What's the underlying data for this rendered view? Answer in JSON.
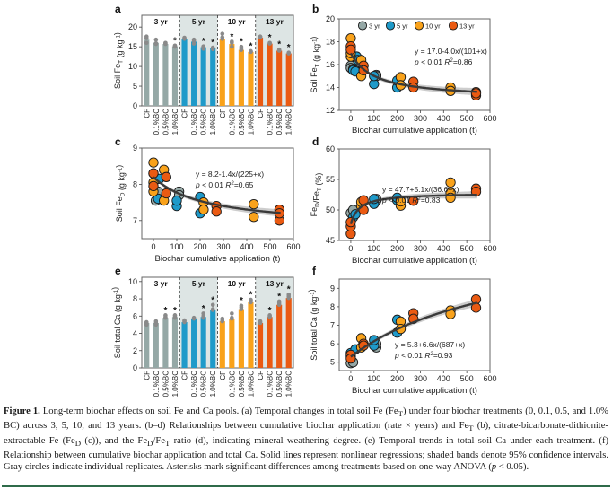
{
  "figure": {
    "caption_label": "Figure 1.",
    "caption_parts": [
      "Long-term biochar effects on soil Fe and Ca pools. (a) Temporal changes in total soil Fe (Fe",
      "T",
      ") under four biochar treatments (0, 0.1, 0.5, and 1.0% BC) across 3, 5, 10, and 13 years. (b–d) Relationships between cumulative biochar application (rate × years) and Fe",
      "T",
      " (b), citrate-bicarbonate-dithionite-extractable Fe (Fe",
      "D",
      " (c)), and the Fe",
      "D",
      "/Fe",
      "T",
      " ratio (d), indicating mineral weathering degree. (e) Temporal trends in total soil Ca under each treatment. (f) Relationship between cumulative biochar application and total Ca. Solid lines represent nonlinear regressions; shaded bands denote 95% confidence intervals. Gray circles indicate individual replicates. Asterisks mark significant differences among treatments based on one-way ANOVA (",
      "p",
      " < 0.05)."
    ]
  },
  "colors": {
    "3 yr": "#95a8a6",
    "5 yr": "#1f9ac9",
    "10 yr": "#f9a21b",
    "13 yr": "#ea5a12",
    "panel_shade": "#dde5e4",
    "fit_line": "#3a3a3a",
    "ci_band": "#b8b8b8",
    "replicate": "#8a8a8a",
    "rule": "#2f6b4a"
  },
  "chart_data": [
    {
      "panel": "a",
      "type": "bar",
      "ylabel": "Soil Fe_T (g kg-1)",
      "ylim": [
        0,
        23
      ],
      "yticks": [
        0,
        5,
        10,
        15,
        20
      ],
      "groups": [
        "3 yr",
        "5 yr",
        "10 yr",
        "13 yr"
      ],
      "categories": [
        "CF",
        "0.1%BC",
        "0.5%BC",
        "1.0%BC"
      ],
      "series": [
        {
          "name": "3 yr",
          "values": [
            16.8,
            16.0,
            15.7,
            15.1
          ],
          "significant": [
            false,
            false,
            false,
            true
          ],
          "replicates": [
            [
              17.6,
              16.0,
              17.2
            ],
            [
              16.8,
              15.7,
              15.9
            ],
            [
              16.0,
              15.7,
              15.9
            ],
            [
              15.2,
              15.0,
              15.3
            ]
          ]
        },
        {
          "name": "5 yr",
          "values": [
            16.9,
            16.3,
            14.9,
            14.6
          ],
          "significant": [
            false,
            false,
            true,
            true
          ],
          "replicates": [
            [
              17.3,
              17.0,
              17.1
            ],
            [
              16.8,
              15.8,
              16.5
            ],
            [
              15.1,
              14.5,
              15.0
            ],
            [
              14.8,
              14.4,
              14.6
            ]
          ]
        },
        {
          "name": "10 yr",
          "values": [
            16.9,
            15.7,
            14.2,
            13.7
          ],
          "significant": [
            false,
            true,
            true,
            true
          ],
          "replicates": [
            [
              18.3,
              17.0,
              17.4
            ],
            [
              16.3,
              15.0,
              16.0
            ],
            [
              15.0,
              14.2,
              14.5
            ],
            [
              13.9,
              13.7,
              13.8
            ]
          ]
        },
        {
          "name": "13 yr",
          "values": [
            17.3,
            15.8,
            14.0,
            13.3
          ],
          "significant": [
            false,
            true,
            true,
            true
          ],
          "replicates": [
            [
              17.6,
              17.4,
              17.5
            ],
            [
              16.0,
              15.8,
              15.9
            ],
            [
              14.3,
              14.0,
              14.1
            ],
            [
              13.5,
              13.3,
              13.4
            ]
          ]
        }
      ],
      "group_labels": [
        "3 yr",
        "5 yr",
        "10 yr",
        "13 yr"
      ]
    },
    {
      "panel": "b",
      "type": "scatter",
      "xlabel": "Biochar cumulative application (t)",
      "ylabel": "Soil Fe_T (g kg-1)",
      "xlim": [
        -50,
        600
      ],
      "ylim": [
        12,
        20
      ],
      "xticks": [
        0,
        100,
        200,
        300,
        400,
        500,
        600
      ],
      "yticks": [
        12,
        14,
        16,
        18,
        20
      ],
      "legend": [
        "3 yr",
        "5 yr",
        "10 yr",
        "13 yr"
      ],
      "legend_position": "top",
      "equation": "y = 17.0-4.0x/(101+x)",
      "stats": "p < 0.01 R2=0.86",
      "fit": {
        "a": 17.0,
        "b": -4.0,
        "c": 101
      },
      "points": [
        {
          "s": "3 yr",
          "x": 0,
          "y": 15.9
        },
        {
          "s": "3 yr",
          "x": 0,
          "y": 15.7
        },
        {
          "s": "3 yr",
          "x": 10,
          "y": 15.6
        },
        {
          "s": "3 yr",
          "x": 20,
          "y": 15.5
        },
        {
          "s": "3 yr",
          "x": 110,
          "y": 15.1
        },
        {
          "s": "3 yr",
          "x": 110,
          "y": 15.0
        },
        {
          "s": "5 yr",
          "x": 10,
          "y": 15.5
        },
        {
          "s": "5 yr",
          "x": 20,
          "y": 15.4
        },
        {
          "s": "5 yr",
          "x": 25,
          "y": 16.7
        },
        {
          "s": "5 yr",
          "x": 30,
          "y": 16.4
        },
        {
          "s": "5 yr",
          "x": 100,
          "y": 14.3
        },
        {
          "s": "5 yr",
          "x": 100,
          "y": 15.0
        },
        {
          "s": "5 yr",
          "x": 200,
          "y": 14.0
        },
        {
          "s": "5 yr",
          "x": 200,
          "y": 14.6
        },
        {
          "s": "10 yr",
          "x": 0,
          "y": 18.3
        },
        {
          "s": "10 yr",
          "x": 0,
          "y": 16.7
        },
        {
          "s": "10 yr",
          "x": 0,
          "y": 17.0
        },
        {
          "s": "10 yr",
          "x": 45,
          "y": 16.4
        },
        {
          "s": "10 yr",
          "x": 45,
          "y": 15.0
        },
        {
          "s": "10 yr",
          "x": 215,
          "y": 14.9
        },
        {
          "s": "10 yr",
          "x": 215,
          "y": 14.2
        },
        {
          "s": "10 yr",
          "x": 430,
          "y": 14.0
        },
        {
          "s": "10 yr",
          "x": 430,
          "y": 13.7
        },
        {
          "s": "13 yr",
          "x": 0,
          "y": 17.6
        },
        {
          "s": "13 yr",
          "x": 0,
          "y": 17.3
        },
        {
          "s": "13 yr",
          "x": 55,
          "y": 15.9
        },
        {
          "s": "13 yr",
          "x": 55,
          "y": 15.5
        },
        {
          "s": "13 yr",
          "x": 270,
          "y": 14.5
        },
        {
          "s": "13 yr",
          "x": 270,
          "y": 14.0
        },
        {
          "s": "13 yr",
          "x": 540,
          "y": 13.6
        },
        {
          "s": "13 yr",
          "x": 540,
          "y": 13.3
        },
        {
          "s": "13 yr",
          "x": 540,
          "y": 13.5
        }
      ]
    },
    {
      "panel": "c",
      "type": "scatter",
      "xlabel": "Biochar cumulative application (t)",
      "ylabel": "Soil Fe_D (g kg-1)",
      "xlim": [
        -50,
        600
      ],
      "ylim": [
        6.5,
        9
      ],
      "xticks": [
        0,
        100,
        200,
        300,
        400,
        500,
        600
      ],
      "yticks": [
        7,
        8,
        9
      ],
      "equation": "y = 8.2-1.4x/(225+x)",
      "stats": "p < 0.01  R2=0.65",
      "fit": {
        "a": 8.2,
        "b": -1.4,
        "c": 225
      },
      "points": [
        {
          "s": "3 yr",
          "x": 0,
          "y": 8.3
        },
        {
          "s": "3 yr",
          "x": 10,
          "y": 7.55
        },
        {
          "s": "3 yr",
          "x": 20,
          "y": 7.8
        },
        {
          "s": "3 yr",
          "x": 110,
          "y": 7.8
        },
        {
          "s": "3 yr",
          "x": 110,
          "y": 7.7
        },
        {
          "s": "5 yr",
          "x": 20,
          "y": 7.6
        },
        {
          "s": "5 yr",
          "x": 25,
          "y": 8.15
        },
        {
          "s": "5 yr",
          "x": 100,
          "y": 7.4
        },
        {
          "s": "5 yr",
          "x": 100,
          "y": 7.55
        },
        {
          "s": "5 yr",
          "x": 200,
          "y": 7.2
        },
        {
          "s": "5 yr",
          "x": 200,
          "y": 7.65
        },
        {
          "s": "10 yr",
          "x": 0,
          "y": 8.6
        },
        {
          "s": "10 yr",
          "x": 0,
          "y": 7.8
        },
        {
          "s": "10 yr",
          "x": 0,
          "y": 8.05
        },
        {
          "s": "10 yr",
          "x": 45,
          "y": 8.4
        },
        {
          "s": "10 yr",
          "x": 45,
          "y": 7.55
        },
        {
          "s": "10 yr",
          "x": 215,
          "y": 7.5
        },
        {
          "s": "10 yr",
          "x": 215,
          "y": 7.3
        },
        {
          "s": "10 yr",
          "x": 430,
          "y": 7.45
        },
        {
          "s": "10 yr",
          "x": 430,
          "y": 7.1
        },
        {
          "s": "13 yr",
          "x": 0,
          "y": 8.3
        },
        {
          "s": "13 yr",
          "x": 0,
          "y": 7.95
        },
        {
          "s": "13 yr",
          "x": 55,
          "y": 8.2
        },
        {
          "s": "13 yr",
          "x": 55,
          "y": 7.75
        },
        {
          "s": "13 yr",
          "x": 270,
          "y": 7.4
        },
        {
          "s": "13 yr",
          "x": 270,
          "y": 7.25
        },
        {
          "s": "13 yr",
          "x": 540,
          "y": 7.3
        },
        {
          "s": "13 yr",
          "x": 540,
          "y": 7.0
        },
        {
          "s": "13 yr",
          "x": 540,
          "y": 7.2
        }
      ]
    },
    {
      "panel": "d",
      "type": "scatter",
      "xlabel": "Biochar cumulative application (t)",
      "ylabel": "Fe_D/Fe_T (%)",
      "xlim": [
        -50,
        600
      ],
      "ylim": [
        45,
        60
      ],
      "xticks": [
        0,
        100,
        200,
        300,
        400,
        500,
        600
      ],
      "yticks": [
        45,
        50,
        55,
        60
      ],
      "equation": "y = 47.7+5.1x/(36.6+x)",
      "stats": "p < 0.01  R2=0.83",
      "fit": {
        "a": 47.7,
        "b": 5.1,
        "c": 36.6
      },
      "points": [
        {
          "s": "3 yr",
          "x": 0,
          "y": 49.5
        },
        {
          "s": "3 yr",
          "x": 10,
          "y": 50.0
        },
        {
          "s": "3 yr",
          "x": 110,
          "y": 51.5
        },
        {
          "s": "3 yr",
          "x": 110,
          "y": 51.8
        },
        {
          "s": "5 yr",
          "x": 10,
          "y": 48.8
        },
        {
          "s": "5 yr",
          "x": 20,
          "y": 49.3
        },
        {
          "s": "5 yr",
          "x": 100,
          "y": 51.0
        },
        {
          "s": "5 yr",
          "x": 100,
          "y": 51.8
        },
        {
          "s": "5 yr",
          "x": 200,
          "y": 51.6
        },
        {
          "s": "5 yr",
          "x": 200,
          "y": 52.0
        },
        {
          "s": "10 yr",
          "x": 45,
          "y": 50.6
        },
        {
          "s": "10 yr",
          "x": 45,
          "y": 51.3
        },
        {
          "s": "10 yr",
          "x": 215,
          "y": 50.7
        },
        {
          "s": "10 yr",
          "x": 215,
          "y": 51.4
        },
        {
          "s": "10 yr",
          "x": 430,
          "y": 54.5
        },
        {
          "s": "10 yr",
          "x": 430,
          "y": 52.8
        },
        {
          "s": "10 yr",
          "x": 430,
          "y": 52.0
        },
        {
          "s": "13 yr",
          "x": 0,
          "y": 46.1
        },
        {
          "s": "13 yr",
          "x": 0,
          "y": 47.3
        },
        {
          "s": "13 yr",
          "x": 0,
          "y": 48.0
        },
        {
          "s": "13 yr",
          "x": 55,
          "y": 50.0
        },
        {
          "s": "13 yr",
          "x": 55,
          "y": 51.6
        },
        {
          "s": "13 yr",
          "x": 270,
          "y": 51.5
        },
        {
          "s": "13 yr",
          "x": 540,
          "y": 53.5
        },
        {
          "s": "13 yr",
          "x": 540,
          "y": 53.0
        }
      ]
    },
    {
      "panel": "e",
      "type": "bar",
      "ylabel": "Soil total Ca (g kg-1)",
      "ylim": [
        0,
        10.5
      ],
      "yticks": [
        0,
        2,
        4,
        6,
        8,
        10
      ],
      "groups": [
        "3 yr",
        "5 yr",
        "10 yr",
        "13 yr"
      ],
      "categories": [
        "CF",
        "0.1%BC",
        "0.5%BC",
        "1.0%BC"
      ],
      "series": [
        {
          "name": "3 yr",
          "values": [
            5.2,
            5.2,
            5.8,
            5.9
          ],
          "significant": [
            false,
            false,
            true,
            true
          ],
          "replicates": [
            [
              5.3,
              5.0,
              5.2
            ],
            [
              5.4,
              5.0,
              5.2
            ],
            [
              6.1,
              5.8,
              5.9
            ],
            [
              6.1,
              5.8,
              6.0
            ]
          ]
        },
        {
          "name": "5 yr",
          "values": [
            5.3,
            5.7,
            5.9,
            6.7
          ],
          "significant": [
            false,
            false,
            true,
            true
          ],
          "replicates": [
            [
              5.5,
              5.3,
              5.4
            ],
            [
              5.8,
              5.7,
              5.75
            ],
            [
              6.3,
              5.8,
              6.0
            ],
            [
              7.3,
              6.7,
              6.8
            ]
          ]
        },
        {
          "name": "10 yr",
          "values": [
            5.4,
            5.7,
            6.8,
            7.6
          ],
          "significant": [
            false,
            false,
            true,
            true
          ],
          "replicates": [
            [
              5.7,
              5.4,
              5.5
            ],
            [
              6.3,
              5.7,
              5.8
            ],
            [
              7.2,
              6.8,
              7.0
            ],
            [
              7.9,
              7.6,
              7.8
            ]
          ]
        },
        {
          "name": "13 yr",
          "values": [
            5.2,
            5.9,
            7.3,
            8.1
          ],
          "significant": [
            false,
            true,
            true,
            true
          ],
          "replicates": [
            [
              5.4,
              5.2,
              5.3
            ],
            [
              6.1,
              5.9,
              6.0
            ],
            [
              7.7,
              7.3,
              7.5
            ],
            [
              8.5,
              8.1,
              8.3
            ]
          ]
        }
      ],
      "group_labels": [
        "3 yr",
        "5 yr",
        "10 yr",
        "13 yr"
      ]
    },
    {
      "panel": "f",
      "type": "scatter",
      "xlabel": "Biochar cumulative application (t)",
      "ylabel": "Soil total Ca (g kg-1)",
      "xlim": [
        -50,
        600
      ],
      "ylim": [
        4.55,
        9.5
      ],
      "xticks": [
        0,
        100,
        200,
        300,
        400,
        500,
        600
      ],
      "yticks": [
        5,
        6,
        7,
        8,
        9
      ],
      "equation": "y = 5.3+6.6x/(687+x)",
      "stats": "p < 0.01  R2=0.93",
      "fit": {
        "a": 5.3,
        "b": 6.6,
        "c": 687
      },
      "points": [
        {
          "s": "3 yr",
          "x": 0,
          "y": 4.95
        },
        {
          "s": "3 yr",
          "x": 10,
          "y": 5.0
        },
        {
          "s": "3 yr",
          "x": 0,
          "y": 5.3
        },
        {
          "s": "3 yr",
          "x": 110,
          "y": 5.8
        },
        {
          "s": "3 yr",
          "x": 110,
          "y": 6.0
        },
        {
          "s": "5 yr",
          "x": 0,
          "y": 5.5
        },
        {
          "s": "5 yr",
          "x": 20,
          "y": 5.7
        },
        {
          "s": "5 yr",
          "x": 100,
          "y": 5.9
        },
        {
          "s": "5 yr",
          "x": 100,
          "y": 6.2
        },
        {
          "s": "5 yr",
          "x": 200,
          "y": 6.6
        },
        {
          "s": "5 yr",
          "x": 200,
          "y": 7.3
        },
        {
          "s": "10 yr",
          "x": 45,
          "y": 6.3
        },
        {
          "s": "10 yr",
          "x": 45,
          "y": 5.8
        },
        {
          "s": "10 yr",
          "x": 215,
          "y": 7.2
        },
        {
          "s": "10 yr",
          "x": 215,
          "y": 6.8
        },
        {
          "s": "10 yr",
          "x": 430,
          "y": 7.8
        },
        {
          "s": "10 yr",
          "x": 430,
          "y": 7.6
        },
        {
          "s": "13 yr",
          "x": 0,
          "y": 5.4
        },
        {
          "s": "13 yr",
          "x": 0,
          "y": 5.2
        },
        {
          "s": "13 yr",
          "x": 55,
          "y": 6.0
        },
        {
          "s": "13 yr",
          "x": 55,
          "y": 5.9
        },
        {
          "s": "13 yr",
          "x": 270,
          "y": 7.65
        },
        {
          "s": "13 yr",
          "x": 270,
          "y": 7.35
        },
        {
          "s": "13 yr",
          "x": 540,
          "y": 8.4
        },
        {
          "s": "13 yr",
          "x": 540,
          "y": 7.95
        }
      ]
    }
  ]
}
